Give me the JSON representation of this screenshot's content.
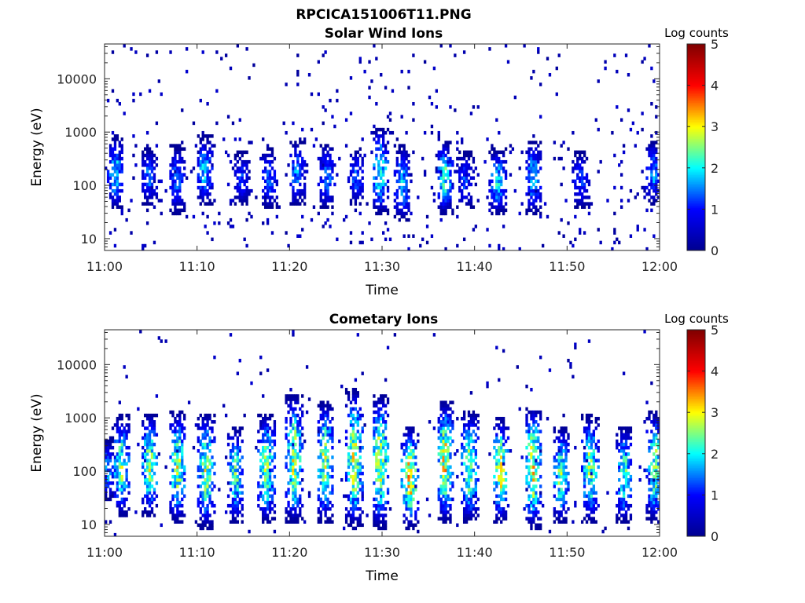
{
  "figure": {
    "title": "RPCICA151006T11.PNG"
  },
  "colormap": {
    "name": "jet",
    "stops": [
      "#00008f",
      "#0000ff",
      "#00ffff",
      "#ffff00",
      "#ff0000",
      "#800000"
    ]
  },
  "chart_data": [
    {
      "type": "heatmap",
      "title": "Solar Wind Ions",
      "xlabel": "Time",
      "ylabel": "Energy (eV)",
      "x_ticks": [
        "11:00",
        "11:10",
        "11:20",
        "11:30",
        "11:40",
        "11:50",
        "12:00"
      ],
      "x_range_minutes": [
        0,
        60
      ],
      "y_scale": "log",
      "y_ticks": [
        "10",
        "100",
        "1000",
        "10000"
      ],
      "y_range_eV": [
        6,
        45000
      ],
      "colorbar": {
        "label": "Log counts",
        "ticks": [
          "0",
          "1",
          "2",
          "3",
          "4",
          "5"
        ],
        "range": [
          0,
          5
        ]
      },
      "bursts": [
        {
          "t": 1.2,
          "e_lo": 50,
          "e_hi": 600,
          "peak": 2.0
        },
        {
          "t": 4.8,
          "e_lo": 60,
          "e_hi": 350,
          "peak": 1.5
        },
        {
          "t": 7.8,
          "e_lo": 40,
          "e_hi": 400,
          "peak": 1.4
        },
        {
          "t": 10.8,
          "e_lo": 60,
          "e_hi": 600,
          "peak": 1.8
        },
        {
          "t": 14.8,
          "e_lo": 60,
          "e_hi": 300,
          "peak": 1.2
        },
        {
          "t": 17.8,
          "e_lo": 50,
          "e_hi": 350,
          "peak": 1.4
        },
        {
          "t": 20.8,
          "e_lo": 60,
          "e_hi": 500,
          "peak": 1.6
        },
        {
          "t": 24.0,
          "e_lo": 50,
          "e_hi": 450,
          "peak": 1.6
        },
        {
          "t": 27.2,
          "e_lo": 60,
          "e_hi": 350,
          "peak": 1.4
        },
        {
          "t": 29.8,
          "e_lo": 40,
          "e_hi": 900,
          "peak": 2.3
        },
        {
          "t": 32.2,
          "e_lo": 30,
          "e_hi": 400,
          "peak": 1.8
        },
        {
          "t": 36.8,
          "e_lo": 40,
          "e_hi": 500,
          "peak": 2.2
        },
        {
          "t": 39.0,
          "e_lo": 50,
          "e_hi": 300,
          "peak": 1.3
        },
        {
          "t": 42.5,
          "e_lo": 40,
          "e_hi": 350,
          "peak": 2.0
        },
        {
          "t": 46.3,
          "e_lo": 40,
          "e_hi": 500,
          "peak": 1.8
        },
        {
          "t": 51.5,
          "e_lo": 50,
          "e_hi": 300,
          "peak": 1.3
        },
        {
          "t": 59.3,
          "e_lo": 60,
          "e_hi": 500,
          "peak": 1.6
        }
      ],
      "background_rate": 0.04
    },
    {
      "type": "heatmap",
      "title": "Cometary Ions",
      "xlabel": "Time",
      "ylabel": "Energy (eV)",
      "x_ticks": [
        "11:00",
        "11:10",
        "11:20",
        "11:30",
        "11:40",
        "11:50",
        "12:00"
      ],
      "x_range_minutes": [
        0,
        60
      ],
      "y_scale": "log",
      "y_ticks": [
        "10",
        "100",
        "1000",
        "10000"
      ],
      "y_range_eV": [
        6,
        45000
      ],
      "colorbar": {
        "label": "Log counts",
        "ticks": [
          "0",
          "1",
          "2",
          "3",
          "4",
          "5"
        ],
        "range": [
          0,
          5
        ]
      },
      "bursts": [
        {
          "t": 0.3,
          "e_lo": 40,
          "e_hi": 300,
          "peak": 1.6
        },
        {
          "t": 1.8,
          "e_lo": 20,
          "e_hi": 800,
          "peak": 2.5
        },
        {
          "t": 4.9,
          "e_lo": 20,
          "e_hi": 900,
          "peak": 2.6
        },
        {
          "t": 7.9,
          "e_lo": 15,
          "e_hi": 1000,
          "peak": 2.7
        },
        {
          "t": 11.0,
          "e_lo": 12,
          "e_hi": 900,
          "peak": 2.7
        },
        {
          "t": 14.2,
          "e_lo": 15,
          "e_hi": 500,
          "peak": 2.3
        },
        {
          "t": 17.5,
          "e_lo": 15,
          "e_hi": 900,
          "peak": 2.6
        },
        {
          "t": 20.5,
          "e_lo": 15,
          "e_hi": 2000,
          "peak": 2.8
        },
        {
          "t": 23.8,
          "e_lo": 15,
          "e_hi": 1500,
          "peak": 2.7
        },
        {
          "t": 27.0,
          "e_lo": 12,
          "e_hi": 2500,
          "peak": 2.9
        },
        {
          "t": 29.8,
          "e_lo": 12,
          "e_hi": 2000,
          "peak": 2.9
        },
        {
          "t": 33.0,
          "e_lo": 12,
          "e_hi": 500,
          "peak": 3.2
        },
        {
          "t": 36.8,
          "e_lo": 15,
          "e_hi": 1500,
          "peak": 3.0
        },
        {
          "t": 39.5,
          "e_lo": 15,
          "e_hi": 1000,
          "peak": 2.7
        },
        {
          "t": 42.8,
          "e_lo": 15,
          "e_hi": 700,
          "peak": 2.9
        },
        {
          "t": 46.3,
          "e_lo": 12,
          "e_hi": 1200,
          "peak": 3.0
        },
        {
          "t": 49.3,
          "e_lo": 15,
          "e_hi": 500,
          "peak": 2.4
        },
        {
          "t": 52.5,
          "e_lo": 15,
          "e_hi": 800,
          "peak": 2.6
        },
        {
          "t": 56.2,
          "e_lo": 15,
          "e_hi": 500,
          "peak": 2.3
        },
        {
          "t": 59.5,
          "e_lo": 15,
          "e_hi": 1000,
          "peak": 2.6
        }
      ],
      "background_rate": 0.015
    }
  ]
}
